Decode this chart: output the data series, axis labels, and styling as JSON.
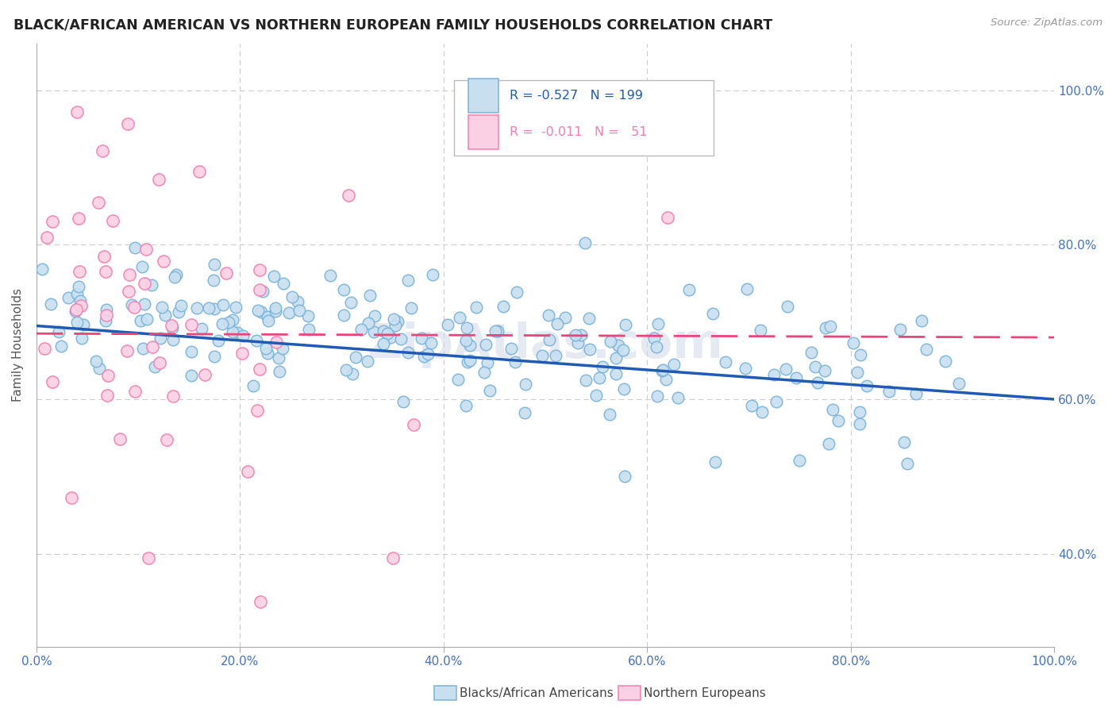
{
  "title": "BLACK/AFRICAN AMERICAN VS NORTHERN EUROPEAN FAMILY HOUSEHOLDS CORRELATION CHART",
  "source": "Source: ZipAtlas.com",
  "ylabel": "Family Households",
  "blue_R": -0.527,
  "blue_N": 199,
  "pink_R": -0.011,
  "pink_N": 51,
  "blue_color": "#7ab3d9",
  "blue_fill": "#c8dff0",
  "pink_color": "#f87cb0",
  "pink_fill": "#fcd0e4",
  "blue_line_color": "#1f5bb5",
  "pink_line_color": "#e8457a",
  "legend_blue_label": "Blacks/African Americans",
  "legend_pink_label": "Northern Europeans",
  "bg_color": "#ffffff",
  "grid_color": "#cccccc",
  "title_color": "#222222",
  "axis_label_color": "#4472c4",
  "watermark": "ZipAtlas.com",
  "xmin": 0.0,
  "xmax": 1.0,
  "ymin": 0.28,
  "ymax": 1.06,
  "yticks": [
    0.4,
    0.6,
    0.8,
    1.0
  ],
  "ytick_labels": [
    "40.0%",
    "60.0%",
    "80.0%",
    "100.0%"
  ],
  "xticks": [
    0.0,
    0.2,
    0.4,
    0.6,
    0.8,
    1.0
  ],
  "xtick_labels": [
    "0.0%",
    "20.0%",
    "40.0%",
    "60.0%",
    "80.0%",
    "100.0%"
  ]
}
